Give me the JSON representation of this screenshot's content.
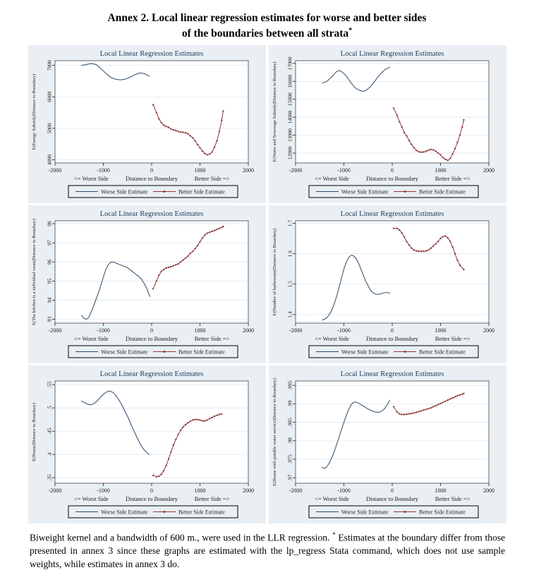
{
  "page": {
    "title_line1": "Annex 2. Local linear regression estimates for worse and better sides",
    "title_line2": "of the boundaries between all strata",
    "title_sup": "*",
    "footnote_part1": "Biweight kernel and a bandwidth of 600 m., were used in the LLR regression. ",
    "footnote_star": "*",
    "footnote_part2": " Estimates at the boundary differ from those presented in annex 3 since these graphs are estimated with the lp_regress Stata command, which does not use sample weights, while estimates in annex 3 do."
  },
  "colors": {
    "panel_bg": "#e9eff3",
    "plot_bg": "#ffffff",
    "grid": "#d9e4ec",
    "border": "#444444",
    "axis_text": "#1a1a1a",
    "panel_title": "#1f3b5c",
    "worse_line": "#2b4a68",
    "better_line": "#8f3839"
  },
  "legend": {
    "worse": "Worse Side Estimate",
    "better": "Better Side Estimate"
  },
  "axis": {
    "x_ticks": [
      "-2000",
      "-1000",
      "0",
      "1000",
      "2000"
    ],
    "xlim": [
      -2000,
      2000
    ],
    "worst_side": "<= Worst Side",
    "xlabel": "Distance to Boundary",
    "better_side": "Better Side =>"
  },
  "chart_data": [
    {
      "type": "line",
      "id": "energy-subsidy",
      "title": "Local Linear Regression Estimates",
      "ylabel": "E(Energy Subsidy|Distance to Boundary)",
      "ylim": [
        3900,
        7150
      ],
      "yticks": [
        {
          "v": 4000,
          "label": "4000"
        },
        {
          "v": 5000,
          "label": "5000"
        },
        {
          "v": 6000,
          "label": "6000"
        },
        {
          "v": 7000,
          "label": "7000"
        }
      ],
      "series": {
        "worse": {
          "name": "Worse Side Estimate",
          "x": [
            -1450,
            -1350,
            -1250,
            -1150,
            -1050,
            -950,
            -850,
            -750,
            -650,
            -550,
            -450,
            -350,
            -250,
            -150,
            -50
          ],
          "y": [
            7000,
            7030,
            7060,
            7030,
            6900,
            6750,
            6620,
            6560,
            6540,
            6560,
            6620,
            6700,
            6760,
            6740,
            6660
          ]
        },
        "better": {
          "name": "Better Side Estimate",
          "x": [
            30,
            100,
            150,
            200,
            250,
            300,
            350,
            400,
            450,
            500,
            550,
            600,
            650,
            700,
            750,
            800,
            850,
            900,
            950,
            1000,
            1050,
            1100,
            1150,
            1200,
            1250,
            1300,
            1350,
            1400,
            1450,
            1480
          ],
          "y": [
            5750,
            5500,
            5300,
            5180,
            5100,
            5060,
            5030,
            4980,
            4950,
            4930,
            4900,
            4880,
            4870,
            4860,
            4830,
            4760,
            4700,
            4600,
            4480,
            4380,
            4280,
            4200,
            4160,
            4180,
            4250,
            4400,
            4600,
            4900,
            5250,
            5550
          ]
        }
      }
    },
    {
      "type": "line",
      "id": "water-sewerage-subsidy",
      "title": "Local Linear Regression Estimates",
      "ylabel": "E(Water and Sewerage Subsidy|Distance to Boundary)",
      "ylim": [
        11450,
        17150
      ],
      "yticks": [
        {
          "v": 12000,
          "label": "12000"
        },
        {
          "v": 13000,
          "label": "13000"
        },
        {
          "v": 14000,
          "label": "14000"
        },
        {
          "v": 15000,
          "label": "15000"
        },
        {
          "v": 16000,
          "label": "16000"
        },
        {
          "v": 17000,
          "label": "17000"
        }
      ],
      "series": {
        "worse": {
          "name": "Worse Side Estimate",
          "x": [
            -1450,
            -1350,
            -1250,
            -1150,
            -1100,
            -1050,
            -950,
            -850,
            -750,
            -650,
            -600,
            -550,
            -450,
            -350,
            -250,
            -150,
            -100,
            -50
          ],
          "y": [
            15900,
            16000,
            16250,
            16550,
            16600,
            16550,
            16300,
            15900,
            15600,
            15470,
            15450,
            15480,
            15700,
            16050,
            16400,
            16650,
            16720,
            16780
          ]
        },
        "better": {
          "name": "Better Side Estimate",
          "x": [
            30,
            100,
            150,
            200,
            250,
            300,
            350,
            400,
            450,
            500,
            550,
            600,
            650,
            700,
            750,
            800,
            850,
            900,
            950,
            1000,
            1050,
            1100,
            1150,
            1200,
            1250,
            1300,
            1350,
            1400,
            1450,
            1480
          ],
          "y": [
            14500,
            14100,
            13750,
            13450,
            13150,
            12950,
            12700,
            12480,
            12300,
            12150,
            12070,
            12050,
            12060,
            12100,
            12160,
            12200,
            12180,
            12100,
            12000,
            11900,
            11750,
            11650,
            11600,
            11700,
            11950,
            12250,
            12600,
            13000,
            13450,
            13850
          ]
        }
      }
    },
    {
      "type": "line",
      "id": "kitchen-individual-room",
      "title": "Local Linear Regression Estimates",
      "ylabel": "E(The kitchen is a individual room|Distance to Boundary)",
      "ylim": [
        92.8,
        98.15
      ],
      "yticks": [
        {
          "v": 93,
          "label": "93"
        },
        {
          "v": 94,
          "label": "94"
        },
        {
          "v": 95,
          "label": "95"
        },
        {
          "v": 96,
          "label": "96"
        },
        {
          "v": 97,
          "label": "97"
        },
        {
          "v": 98,
          "label": "98"
        }
      ],
      "series": {
        "worse": {
          "name": "Worse Side Estimate",
          "x": [
            -1450,
            -1400,
            -1350,
            -1300,
            -1250,
            -1200,
            -1150,
            -1100,
            -1050,
            -1000,
            -950,
            -900,
            -850,
            -800,
            -750,
            -700,
            -650,
            -600,
            -550,
            -500,
            -450,
            -400,
            -350,
            -300,
            -250,
            -200,
            -150,
            -100,
            -50,
            -30
          ],
          "y": [
            93.2,
            93.05,
            93.0,
            93.1,
            93.4,
            93.7,
            94.05,
            94.4,
            94.8,
            95.2,
            95.6,
            95.85,
            95.98,
            96.0,
            95.95,
            95.9,
            95.85,
            95.8,
            95.75,
            95.7,
            95.6,
            95.5,
            95.4,
            95.3,
            95.2,
            95.05,
            94.85,
            94.6,
            94.25,
            94.2
          ]
        },
        "better": {
          "name": "Better Side Estimate",
          "x": [
            30,
            100,
            150,
            200,
            250,
            300,
            350,
            400,
            450,
            500,
            550,
            600,
            650,
            700,
            750,
            800,
            850,
            900,
            950,
            1000,
            1050,
            1100,
            1150,
            1200,
            1250,
            1300,
            1350,
            1400,
            1450,
            1480
          ],
          "y": [
            94.6,
            95.0,
            95.3,
            95.5,
            95.6,
            95.68,
            95.72,
            95.75,
            95.8,
            95.85,
            95.9,
            96.0,
            96.1,
            96.2,
            96.3,
            96.45,
            96.55,
            96.7,
            96.85,
            97.05,
            97.25,
            97.4,
            97.5,
            97.55,
            97.6,
            97.65,
            97.7,
            97.75,
            97.8,
            97.85
          ]
        }
      }
    },
    {
      "type": "line",
      "id": "number-of-bathrooms",
      "title": "Local Linear Regression Estimates",
      "ylabel": "E(Number of bathrooms|Distance to Boundary)",
      "ylim": [
        1.372,
        1.708
      ],
      "yticks": [
        {
          "v": 1.4,
          "label": "1.4"
        },
        {
          "v": 1.5,
          "label": "1.5"
        },
        {
          "v": 1.6,
          "label": "1.6"
        },
        {
          "v": 1.7,
          "label": "1.7"
        }
      ],
      "series": {
        "worse": {
          "name": "Worse Side Estimate",
          "x": [
            -1450,
            -1400,
            -1350,
            -1300,
            -1250,
            -1200,
            -1150,
            -1100,
            -1050,
            -1000,
            -950,
            -900,
            -850,
            -800,
            -750,
            -700,
            -650,
            -600,
            -550,
            -500,
            -450,
            -400,
            -350,
            -300,
            -250,
            -200,
            -150,
            -100,
            -50
          ],
          "y": [
            1.382,
            1.385,
            1.39,
            1.4,
            1.415,
            1.435,
            1.46,
            1.49,
            1.52,
            1.55,
            1.572,
            1.588,
            1.595,
            1.593,
            1.585,
            1.57,
            1.55,
            1.53,
            1.51,
            1.495,
            1.48,
            1.472,
            1.468,
            1.466,
            1.468,
            1.47,
            1.472,
            1.472,
            1.47
          ]
        },
        "better": {
          "name": "Better Side Estimate",
          "x": [
            30,
            100,
            150,
            200,
            250,
            300,
            350,
            400,
            450,
            500,
            550,
            600,
            650,
            700,
            750,
            800,
            850,
            900,
            950,
            1000,
            1050,
            1100,
            1150,
            1200,
            1250,
            1300,
            1350,
            1400,
            1480
          ],
          "y": [
            1.683,
            1.683,
            1.678,
            1.668,
            1.655,
            1.64,
            1.628,
            1.618,
            1.612,
            1.609,
            1.608,
            1.608,
            1.608,
            1.609,
            1.612,
            1.618,
            1.625,
            1.632,
            1.64,
            1.65,
            1.656,
            1.658,
            1.652,
            1.64,
            1.622,
            1.6,
            1.578,
            1.562,
            1.548
          ]
        }
      }
    },
    {
      "type": "line",
      "id": "house",
      "title": "Local Linear Regression Estimates",
      "ylabel": "E(House|Distance to Boundary)",
      "ylim": [
        0.338,
        0.558
      ],
      "yticks": [
        {
          "v": 0.35,
          "label": ".35"
        },
        {
          "v": 0.4,
          "label": ".4"
        },
        {
          "v": 0.45,
          "label": ".45"
        },
        {
          "v": 0.5,
          "label": ".5"
        },
        {
          "v": 0.55,
          "label": ".55"
        }
      ],
      "series": {
        "worse": {
          "name": "Worse Side Estimate",
          "x": [
            -1450,
            -1400,
            -1350,
            -1300,
            -1250,
            -1200,
            -1150,
            -1100,
            -1050,
            -1000,
            -950,
            -900,
            -850,
            -800,
            -750,
            -700,
            -650,
            -600,
            -550,
            -500,
            -450,
            -400,
            -350,
            -300,
            -250,
            -200,
            -150,
            -100,
            -50
          ],
          "y": [
            0.515,
            0.512,
            0.509,
            0.507,
            0.507,
            0.509,
            0.513,
            0.518,
            0.524,
            0.529,
            0.533,
            0.536,
            0.536,
            0.533,
            0.528,
            0.521,
            0.512,
            0.503,
            0.492,
            0.482,
            0.47,
            0.458,
            0.447,
            0.436,
            0.425,
            0.416,
            0.409,
            0.404,
            0.4
          ]
        },
        "better": {
          "name": "Better Side Estimate",
          "x": [
            30,
            100,
            150,
            200,
            250,
            300,
            350,
            400,
            450,
            500,
            550,
            600,
            650,
            700,
            750,
            800,
            850,
            900,
            950,
            1000,
            1050,
            1100,
            1150,
            1200,
            1250,
            1300,
            1350,
            1400,
            1450
          ],
          "y": [
            0.355,
            0.352,
            0.353,
            0.357,
            0.365,
            0.376,
            0.39,
            0.405,
            0.42,
            0.432,
            0.443,
            0.452,
            0.459,
            0.464,
            0.468,
            0.471,
            0.474,
            0.475,
            0.475,
            0.474,
            0.472,
            0.472,
            0.474,
            0.477,
            0.479,
            0.482,
            0.484,
            0.486,
            0.487
          ]
        }
      }
    },
    {
      "type": "line",
      "id": "potable-water-service",
      "title": "Local Linear Regression Estimates",
      "ylabel": "E(House with potable water service|Distance to Boundary)",
      "ylim": [
        0.9685,
        0.9962
      ],
      "yticks": [
        {
          "v": 0.97,
          "label": ".97"
        },
        {
          "v": 0.975,
          "label": ".975"
        },
        {
          "v": 0.98,
          "label": ".98"
        },
        {
          "v": 0.985,
          "label": ".985"
        },
        {
          "v": 0.99,
          "label": ".99"
        },
        {
          "v": 0.995,
          "label": ".995"
        }
      ],
      "series": {
        "worse": {
          "name": "Worse Side Estimate",
          "x": [
            -1450,
            -1400,
            -1350,
            -1300,
            -1250,
            -1200,
            -1150,
            -1100,
            -1050,
            -1000,
            -950,
            -900,
            -850,
            -800,
            -750,
            -700,
            -650,
            -600,
            -550,
            -500,
            -450,
            -400,
            -350,
            -300,
            -250,
            -200,
            -150,
            -100,
            -50
          ],
          "y": [
            0.9728,
            0.9725,
            0.973,
            0.974,
            0.9755,
            0.977,
            0.979,
            0.981,
            0.983,
            0.985,
            0.9868,
            0.9885,
            0.9898,
            0.9904,
            0.9905,
            0.9902,
            0.9898,
            0.9894,
            0.989,
            0.9886,
            0.9883,
            0.988,
            0.9878,
            0.9877,
            0.9878,
            0.9882,
            0.9888,
            0.9898,
            0.991
          ]
        },
        "better": {
          "name": "Better Side Estimate",
          "x": [
            30,
            100,
            150,
            200,
            250,
            300,
            350,
            400,
            450,
            500,
            550,
            600,
            650,
            700,
            750,
            800,
            850,
            900,
            950,
            1000,
            1050,
            1100,
            1150,
            1200,
            1250,
            1300,
            1350,
            1400,
            1450,
            1480
          ],
          "y": [
            0.9892,
            0.9878,
            0.9873,
            0.9871,
            0.9871,
            0.9872,
            0.9873,
            0.9874,
            0.9875,
            0.9877,
            0.9879,
            0.9881,
            0.9883,
            0.9885,
            0.9887,
            0.9889,
            0.9892,
            0.9895,
            0.9898,
            0.9901,
            0.9904,
            0.9907,
            0.991,
            0.9913,
            0.9916,
            0.9919,
            0.9922,
            0.9924,
            0.9926,
            0.9928
          ]
        }
      }
    }
  ]
}
